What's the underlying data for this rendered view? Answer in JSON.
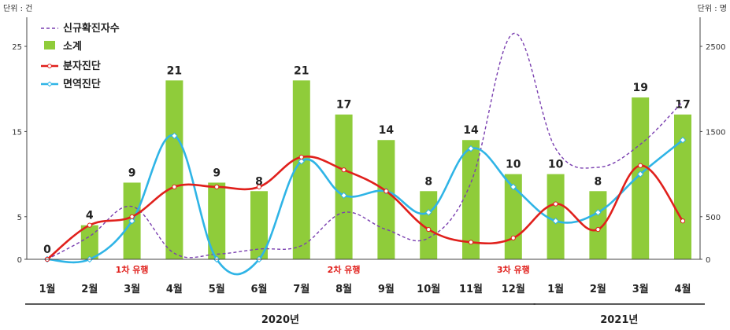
{
  "units": {
    "left": "단위 : 건",
    "right": "단위 : 명"
  },
  "colors": {
    "bar": "#8fcc3a",
    "confirmed": "#7a3fb0",
    "molecular": "#e0201c",
    "immuno": "#2fb4e6",
    "wave_text": "#e0201c"
  },
  "chart_data": {
    "type": "bar",
    "categories": [
      "1월",
      "2월",
      "3월",
      "4월",
      "5월",
      "6월",
      "7월",
      "8월",
      "9월",
      "10월",
      "11월",
      "12월",
      "1월",
      "2월",
      "3월",
      "4월"
    ],
    "year_groups": [
      {
        "label": "2020년",
        "from": 0,
        "to": 11
      },
      {
        "label": "2021년",
        "from": 12,
        "to": 15
      }
    ],
    "left_axis": {
      "ylim": [
        0,
        28
      ],
      "ticks": [
        0,
        5,
        15,
        25
      ]
    },
    "right_axis": {
      "ylim": [
        0,
        2800
      ],
      "ticks": [
        0,
        500,
        1500,
        2500
      ]
    },
    "series": [
      {
        "name": "소계",
        "kind": "bar",
        "axis": "left",
        "values": [
          0,
          4,
          9,
          21,
          9,
          8,
          21,
          17,
          14,
          8,
          14,
          10,
          10,
          8,
          19,
          17
        ]
      },
      {
        "name": "분자진단",
        "kind": "line",
        "axis": "left",
        "values": [
          0,
          4,
          5,
          8.5,
          8.5,
          8.5,
          12,
          10.5,
          8,
          3.5,
          2,
          2.5,
          6.5,
          3.5,
          11,
          4.5
        ]
      },
      {
        "name": "면역진단",
        "kind": "line",
        "axis": "left",
        "values": [
          0,
          0,
          4.5,
          14.5,
          0,
          0,
          11.5,
          7.5,
          8,
          5.5,
          13,
          8.5,
          4.5,
          5.5,
          10,
          14
        ]
      },
      {
        "name": "신규확진자수",
        "kind": "line",
        "axis": "right",
        "dashed": true,
        "values": [
          0,
          270,
          620,
          70,
          60,
          120,
          160,
          550,
          350,
          250,
          900,
          2650,
          1300,
          1080,
          1350,
          1850
        ]
      }
    ],
    "annotations": [
      {
        "text": "1차 유행",
        "at": 2
      },
      {
        "text": "2차 유행",
        "at": 7
      },
      {
        "text": "3차 유행",
        "at": 11
      }
    ],
    "grid": false,
    "legend_placement": "top-left"
  }
}
